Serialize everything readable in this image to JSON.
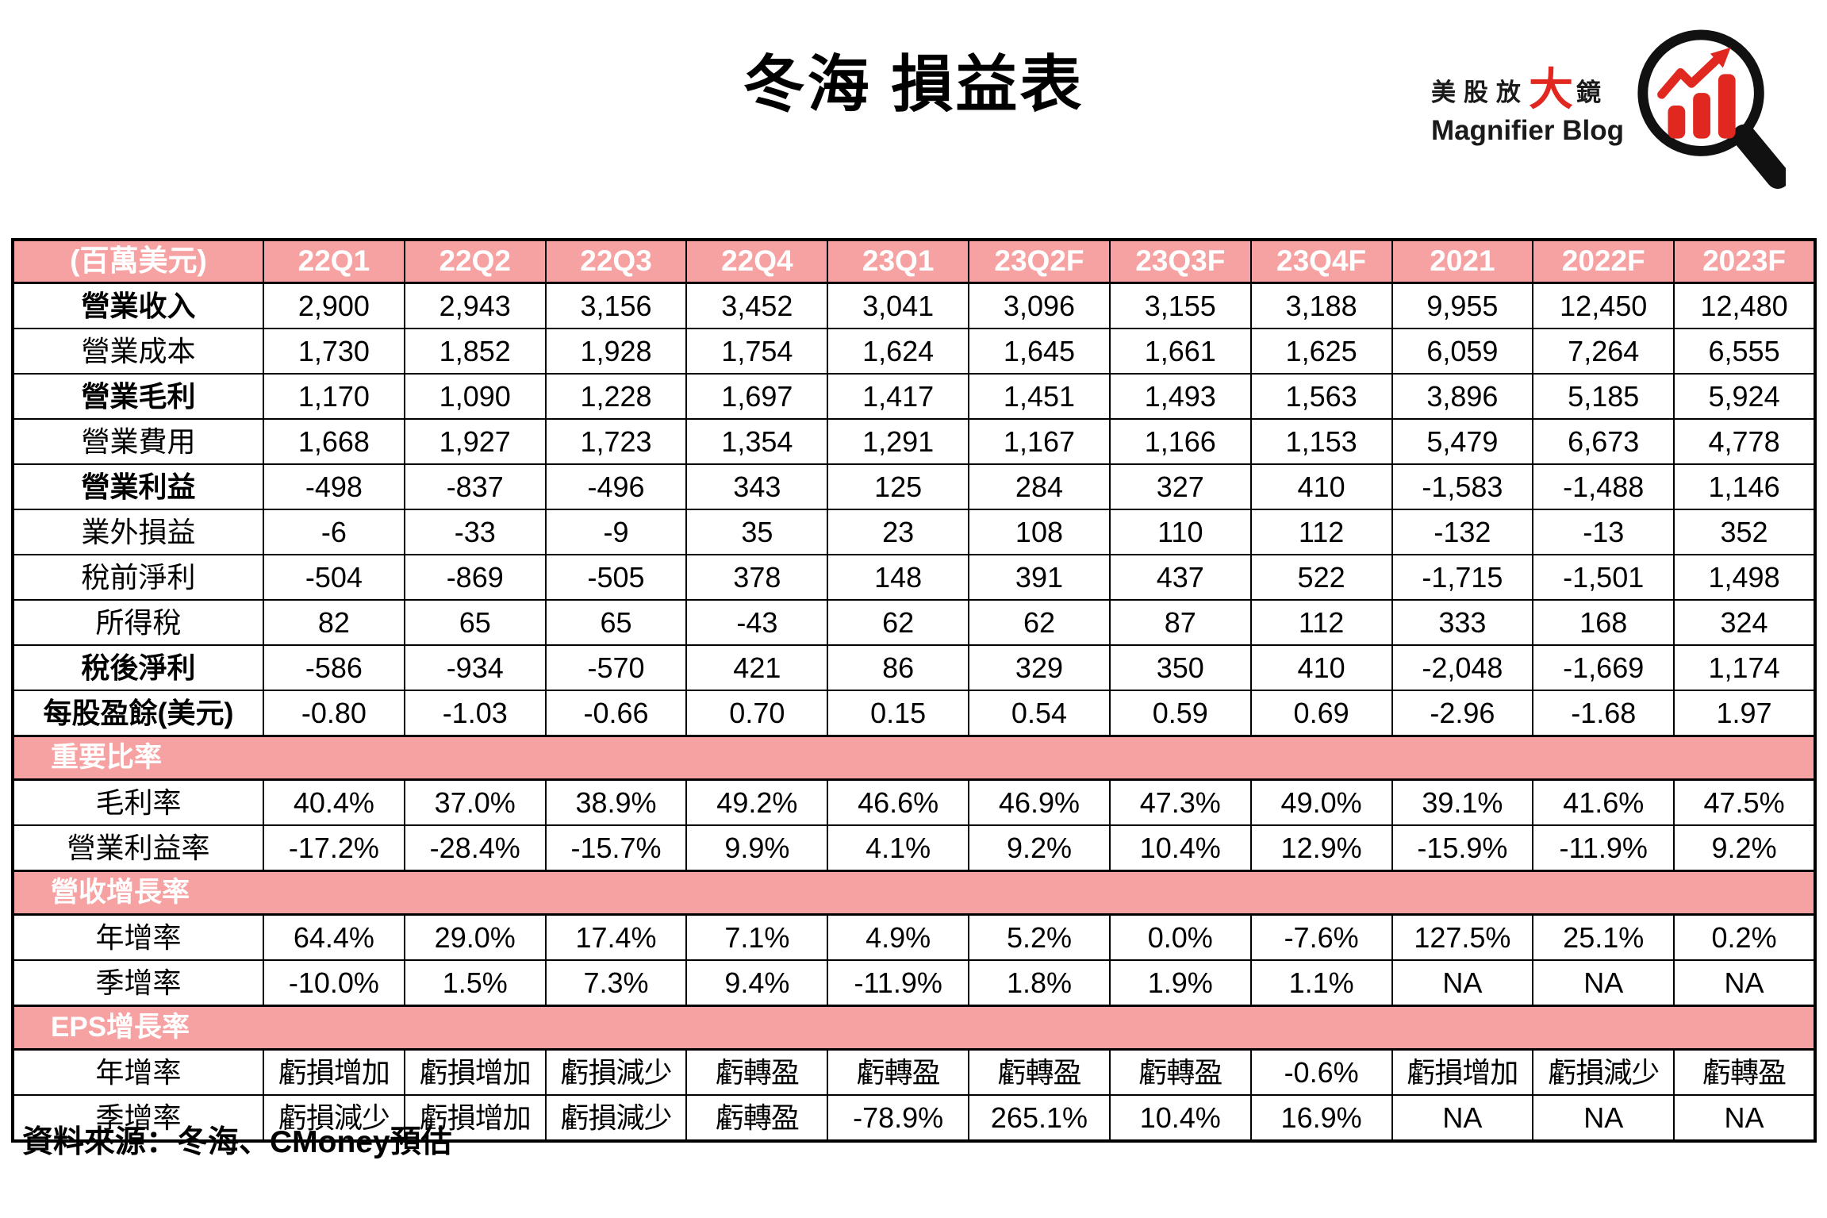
{
  "logo": {
    "line1_prefix": "美股放",
    "line1_big": "大",
    "line1_suffix": "鏡",
    "line2": "Magnifier Blog",
    "icon": "magnifier-with-bar-chart-icon"
  },
  "colors": {
    "header_pink": "#f7a2a2",
    "header_text": "#ffffff",
    "logo_red": "#e02820",
    "border": "#000000"
  },
  "chart_data": {
    "type": "table",
    "title": "冬海 損益表",
    "unit_label": "(百萬美元)",
    "columns": [
      "22Q1",
      "22Q2",
      "22Q3",
      "22Q4",
      "23Q1",
      "23Q2F",
      "23Q3F",
      "23Q4F",
      "2021",
      "2022F",
      "2023F"
    ],
    "rows": [
      {
        "type": "data",
        "label": "營業收入",
        "bold": true,
        "values": [
          "2,900",
          "2,943",
          "3,156",
          "3,452",
          "3,041",
          "3,096",
          "3,155",
          "3,188",
          "9,955",
          "12,450",
          "12,480"
        ]
      },
      {
        "type": "data",
        "label": "營業成本",
        "bold": false,
        "values": [
          "1,730",
          "1,852",
          "1,928",
          "1,754",
          "1,624",
          "1,645",
          "1,661",
          "1,625",
          "6,059",
          "7,264",
          "6,555"
        ]
      },
      {
        "type": "data",
        "label": "營業毛利",
        "bold": true,
        "values": [
          "1,170",
          "1,090",
          "1,228",
          "1,697",
          "1,417",
          "1,451",
          "1,493",
          "1,563",
          "3,896",
          "5,185",
          "5,924"
        ]
      },
      {
        "type": "data",
        "label": "營業費用",
        "bold": false,
        "values": [
          "1,668",
          "1,927",
          "1,723",
          "1,354",
          "1,291",
          "1,167",
          "1,166",
          "1,153",
          "5,479",
          "6,673",
          "4,778"
        ]
      },
      {
        "type": "data",
        "label": "營業利益",
        "bold": true,
        "values": [
          "-498",
          "-837",
          "-496",
          "343",
          "125",
          "284",
          "327",
          "410",
          "-1,583",
          "-1,488",
          "1,146"
        ]
      },
      {
        "type": "data",
        "label": "業外損益",
        "bold": false,
        "values": [
          "-6",
          "-33",
          "-9",
          "35",
          "23",
          "108",
          "110",
          "112",
          "-132",
          "-13",
          "352"
        ]
      },
      {
        "type": "data",
        "label": "稅前淨利",
        "bold": false,
        "values": [
          "-504",
          "-869",
          "-505",
          "378",
          "148",
          "391",
          "437",
          "522",
          "-1,715",
          "-1,501",
          "1,498"
        ]
      },
      {
        "type": "data",
        "label": "所得稅",
        "bold": false,
        "values": [
          "82",
          "65",
          "65",
          "-43",
          "62",
          "62",
          "87",
          "112",
          "333",
          "168",
          "324"
        ]
      },
      {
        "type": "data",
        "label": "稅後淨利",
        "bold": true,
        "values": [
          "-586",
          "-934",
          "-570",
          "421",
          "86",
          "329",
          "350",
          "410",
          "-2,048",
          "-1,669",
          "1,174"
        ]
      },
      {
        "type": "data",
        "label": "每股盈餘(美元)",
        "bold": true,
        "values": [
          "-0.80",
          "-1.03",
          "-0.66",
          "0.70",
          "0.15",
          "0.54",
          "0.59",
          "0.69",
          "-2.96",
          "-1.68",
          "1.97"
        ]
      },
      {
        "type": "section",
        "label": "重要比率"
      },
      {
        "type": "data",
        "label": "毛利率",
        "bold": false,
        "values": [
          "40.4%",
          "37.0%",
          "38.9%",
          "49.2%",
          "46.6%",
          "46.9%",
          "47.3%",
          "49.0%",
          "39.1%",
          "41.6%",
          "47.5%"
        ]
      },
      {
        "type": "data",
        "label": "營業利益率",
        "bold": false,
        "values": [
          "-17.2%",
          "-28.4%",
          "-15.7%",
          "9.9%",
          "4.1%",
          "9.2%",
          "10.4%",
          "12.9%",
          "-15.9%",
          "-11.9%",
          "9.2%"
        ]
      },
      {
        "type": "section",
        "label": "營收增長率"
      },
      {
        "type": "data",
        "label": "年增率",
        "bold": false,
        "values": [
          "64.4%",
          "29.0%",
          "17.4%",
          "7.1%",
          "4.9%",
          "5.2%",
          "0.0%",
          "-7.6%",
          "127.5%",
          "25.1%",
          "0.2%"
        ]
      },
      {
        "type": "data",
        "label": "季增率",
        "bold": false,
        "values": [
          "-10.0%",
          "1.5%",
          "7.3%",
          "9.4%",
          "-11.9%",
          "1.8%",
          "1.9%",
          "1.1%",
          "NA",
          "NA",
          "NA"
        ]
      },
      {
        "type": "section",
        "label": "EPS增長率"
      },
      {
        "type": "data",
        "label": "年增率",
        "bold": false,
        "values": [
          "虧損增加",
          "虧損增加",
          "虧損減少",
          "虧轉盈",
          "虧轉盈",
          "虧轉盈",
          "虧轉盈",
          "-0.6%",
          "虧損增加",
          "虧損減少",
          "虧轉盈"
        ]
      },
      {
        "type": "data",
        "label": "季增率",
        "bold": false,
        "values": [
          "虧損減少",
          "虧損增加",
          "虧損減少",
          "虧轉盈",
          "-78.9%",
          "265.1%",
          "10.4%",
          "16.9%",
          "NA",
          "NA",
          "NA"
        ]
      }
    ],
    "source_note": "資料來源：冬海、CMoney預估"
  }
}
